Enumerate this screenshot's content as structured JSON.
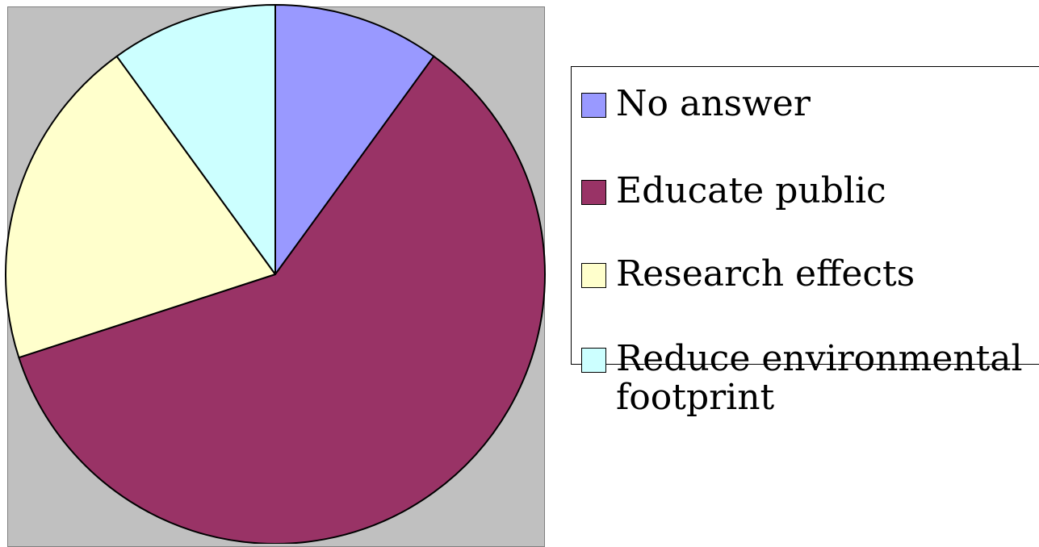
{
  "chart_data": {
    "type": "pie",
    "title": "",
    "slices": [
      {
        "label": "No answer",
        "value": 10,
        "color": "#9999ff"
      },
      {
        "label": "Educate public",
        "value": 60,
        "color": "#993366"
      },
      {
        "label": "Research effects",
        "value": 20,
        "color": "#ffffcc"
      },
      {
        "label": "Reduce environmental footprint",
        "value": 10,
        "color": "#ccffff"
      }
    ],
    "legend_position": "right",
    "start_angle": "12 o'clock",
    "direction": "clockwise",
    "plot_background": "#c0c0c0"
  }
}
